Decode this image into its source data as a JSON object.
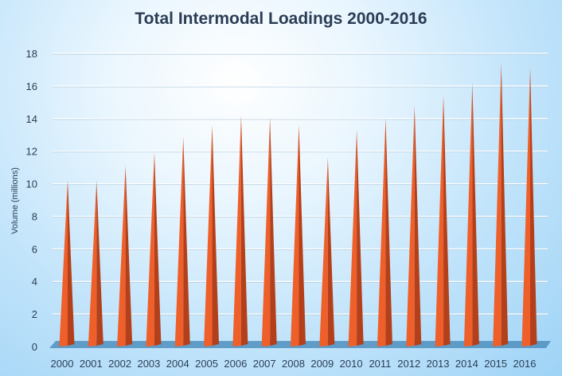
{
  "chart_data": {
    "type": "bar",
    "title": "Total Intermodal Loadings 2000-2016",
    "xlabel": "",
    "ylabel": "Volume (millions)",
    "ylim": [
      0,
      18
    ],
    "yticks": [
      0,
      2,
      4,
      6,
      8,
      10,
      12,
      14,
      16,
      18
    ],
    "grid": true,
    "legend": "none",
    "bar_shape": "cone",
    "colors": {
      "bar": "#ef5f2a",
      "bar_shadow": "#b3401a",
      "floor": "#4f8fbe"
    },
    "categories": [
      "2000",
      "2001",
      "2002",
      "2003",
      "2004",
      "2005",
      "2006",
      "2007",
      "2008",
      "2009",
      "2010",
      "2011",
      "2012",
      "2013",
      "2014",
      "2015",
      "2016"
    ],
    "values": [
      10.2,
      10.2,
      11.1,
      11.9,
      12.9,
      13.6,
      14.2,
      14.1,
      13.6,
      11.6,
      13.3,
      14.0,
      14.8,
      15.4,
      16.2,
      17.4,
      17.1
    ]
  }
}
